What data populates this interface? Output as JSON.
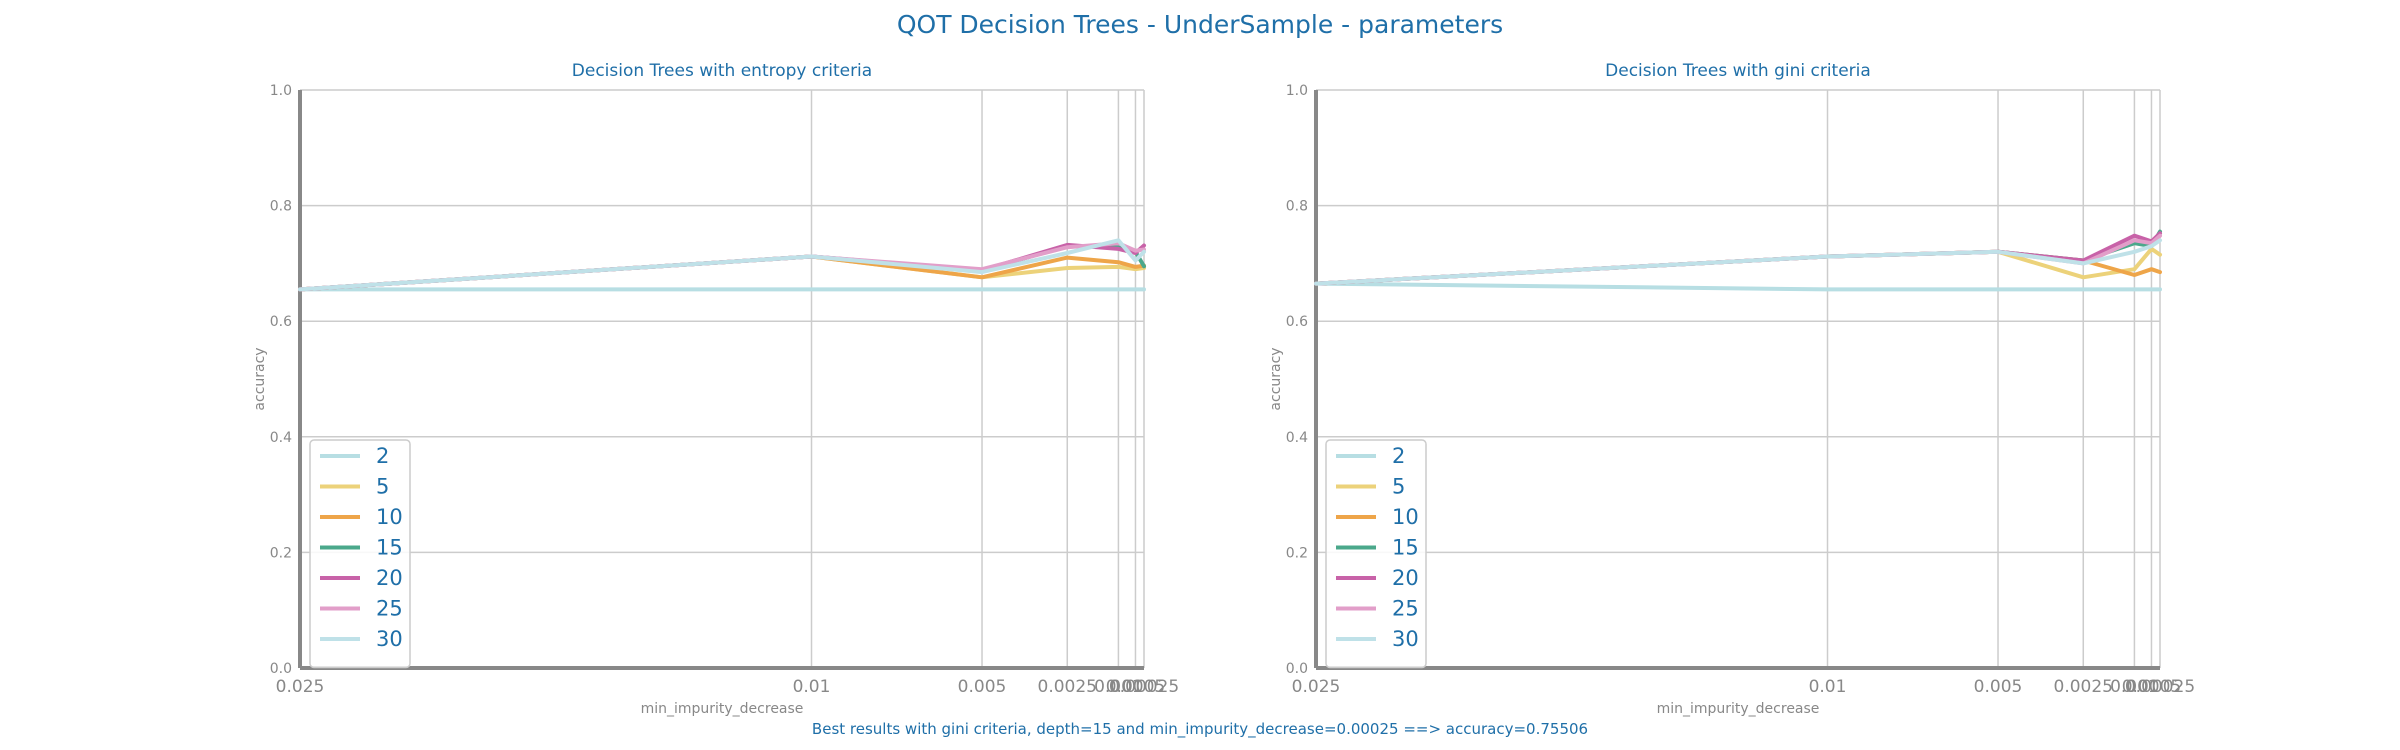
{
  "suptitle": "QOT Decision Trees - UnderSample - parameters",
  "footnote": "Best results with gini criteria, depth=15 and min_impurity_decrease=0.00025 ==> accuracy=0.75506",
  "colors": {
    "2": "#b7dee3",
    "5": "#ecd27a",
    "10": "#eea549",
    "15": "#4ba88b",
    "20": "#c862a8",
    "25": "#e29ec9",
    "30": "#bfe1e8",
    "text": "#1f6fa8",
    "axis": "#888888",
    "grid": "#cccccc"
  },
  "chart_data": [
    {
      "type": "line",
      "title": "Decision Trees with entropy criteria",
      "xlabel": "min_impurity_decrease",
      "ylabel": "accuracy",
      "x_tick_labels": [
        "0.025",
        "0.01",
        "0.005",
        "0.0025",
        "0.001",
        "0.0005",
        "0.00025"
      ],
      "x": [
        0.025,
        0.01,
        0.005,
        0.0025,
        0.001,
        0.0005,
        0.00025
      ],
      "ylim": [
        0,
        1
      ],
      "y_ticks": [
        "0.0",
        "0.2",
        "0.4",
        "0.6",
        "0.8",
        "1.0"
      ],
      "grid": true,
      "legend": "bottom-left",
      "series": [
        {
          "name": "2",
          "values": [
            0.655,
            0.655,
            0.655,
            0.655,
            0.655,
            0.655,
            0.655
          ]
        },
        {
          "name": "5",
          "values": [
            0.655,
            0.712,
            0.676,
            0.692,
            0.694,
            0.69,
            0.692
          ]
        },
        {
          "name": "10",
          "values": [
            0.655,
            0.712,
            0.676,
            0.71,
            0.702,
            0.694,
            0.696
          ]
        },
        {
          "name": "15",
          "values": [
            0.655,
            0.712,
            0.688,
            0.73,
            0.728,
            0.72,
            0.695
          ]
        },
        {
          "name": "20",
          "values": [
            0.655,
            0.712,
            0.688,
            0.732,
            0.725,
            0.718,
            0.731
          ]
        },
        {
          "name": "25",
          "values": [
            0.655,
            0.712,
            0.69,
            0.728,
            0.735,
            0.722,
            0.724
          ]
        },
        {
          "name": "30",
          "values": [
            0.655,
            0.712,
            0.685,
            0.718,
            0.74,
            0.705,
            0.72
          ]
        }
      ]
    },
    {
      "type": "line",
      "title": "Decision Trees with gini criteria",
      "xlabel": "min_impurity_decrease",
      "ylabel": "accuracy",
      "x_tick_labels": [
        "0.025",
        "0.01",
        "0.005",
        "0.0025",
        "0.001",
        "0.0005",
        "0.00025"
      ],
      "x": [
        0.025,
        0.01,
        0.005,
        0.0025,
        0.001,
        0.0005,
        0.00025
      ],
      "ylim": [
        0,
        1
      ],
      "y_ticks": [
        "0.0",
        "0.2",
        "0.4",
        "0.6",
        "0.8",
        "1.0"
      ],
      "grid": true,
      "legend": "bottom-left",
      "series": [
        {
          "name": "2",
          "values": [
            0.665,
            0.655,
            0.655,
            0.655,
            0.655,
            0.655,
            0.655
          ]
        },
        {
          "name": "5",
          "values": [
            0.665,
            0.712,
            0.72,
            0.676,
            0.69,
            0.725,
            0.715
          ]
        },
        {
          "name": "10",
          "values": [
            0.665,
            0.712,
            0.72,
            0.705,
            0.68,
            0.69,
            0.685
          ]
        },
        {
          "name": "15",
          "values": [
            0.665,
            0.712,
            0.72,
            0.705,
            0.735,
            0.73,
            0.755
          ]
        },
        {
          "name": "20",
          "values": [
            0.665,
            0.712,
            0.72,
            0.705,
            0.748,
            0.738,
            0.752
          ]
        },
        {
          "name": "25",
          "values": [
            0.665,
            0.712,
            0.72,
            0.7,
            0.74,
            0.735,
            0.748
          ]
        },
        {
          "name": "30",
          "values": [
            0.665,
            0.712,
            0.72,
            0.7,
            0.72,
            0.73,
            0.74
          ]
        }
      ]
    }
  ]
}
